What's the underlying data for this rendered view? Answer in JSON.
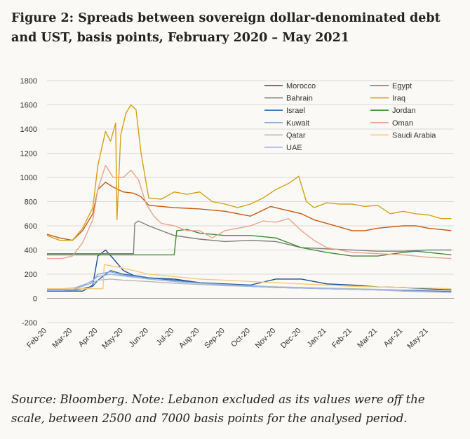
{
  "figure": {
    "title": "Figure 2: Spreads between sovereign dollar-denominated debt and UST, basis points, February 2020 – May 2021",
    "source": "Source: Bloomberg. Note: Lebanon excluded as its values were off the scale, between 2500 and 7000 basis points for the analysed period."
  },
  "chart_data": {
    "type": "line",
    "title": "",
    "xlabel": "",
    "ylabel": "",
    "ylim": [
      -200,
      1800
    ],
    "yticks": [
      -200,
      0,
      200,
      400,
      600,
      800,
      1000,
      1200,
      1400,
      1600,
      1800
    ],
    "x_ticks": [
      "Feb-20",
      "Mar-20",
      "Apr-20",
      "May-20",
      "Jun-20",
      "Jul-20",
      "Aug-20",
      "Sep-20",
      "Oct-20",
      "Nov-20",
      "Dec-20",
      "Jan-21",
      "Feb-21",
      "Mar-21",
      "Apr-21",
      "May-21"
    ],
    "x_range": [
      0,
      16
    ],
    "grid": true,
    "legend_position": "top-right",
    "series": [
      {
        "name": "Morocco",
        "color": "#1f4e91",
        "x": [
          0,
          0.6,
          1,
          1.4,
          1.8,
          2.0,
          2.3,
          2.6,
          3,
          3.4,
          4,
          5,
          6,
          7,
          8,
          9,
          10,
          11,
          12,
          13,
          14,
          15,
          15.9
        ],
        "y": [
          60,
          60,
          60,
          60,
          110,
          350,
          400,
          330,
          230,
          190,
          170,
          160,
          130,
          120,
          110,
          160,
          160,
          120,
          110,
          95,
          90,
          80,
          70
        ]
      },
      {
        "name": "Egypt",
        "color": "#c55a11",
        "x": [
          0,
          0.5,
          1,
          1.4,
          1.8,
          2.0,
          2.3,
          2.6,
          3,
          3.4,
          3.7,
          4,
          4.5,
          5,
          6,
          7,
          8,
          8.4,
          8.8,
          9.2,
          9.6,
          10,
          10.5,
          11,
          11.5,
          12,
          12.5,
          13,
          13.5,
          14,
          14.5,
          15,
          15.9
        ],
        "y": [
          530,
          500,
          480,
          560,
          700,
          900,
          960,
          920,
          880,
          870,
          840,
          770,
          760,
          750,
          740,
          720,
          680,
          720,
          760,
          740,
          720,
          700,
          650,
          620,
          590,
          560,
          560,
          580,
          590,
          600,
          600,
          580,
          560
        ]
      },
      {
        "name": "Bahrain",
        "color": "#7f7f7f",
        "x": [
          0,
          0.6,
          1,
          1.4,
          1.8,
          2.0,
          2.5,
          3,
          3.3,
          3.4,
          3.45,
          3.6,
          4,
          5,
          6,
          7,
          8,
          9,
          10,
          11,
          12,
          13,
          14,
          15,
          15.9
        ],
        "y": [
          370,
          370,
          370,
          370,
          370,
          370,
          370,
          370,
          370,
          370,
          620,
          640,
          600,
          520,
          490,
          470,
          480,
          470,
          420,
          410,
          400,
          390,
          390,
          400,
          400
        ]
      },
      {
        "name": "Iraq",
        "color": "#d4a017",
        "x": [
          0,
          0.5,
          1,
          1.4,
          1.8,
          2.0,
          2.3,
          2.5,
          2.7,
          2.75,
          2.9,
          3.1,
          3.3,
          3.5,
          3.7,
          4,
          4.5,
          5,
          5.5,
          6,
          6.5,
          7,
          7.5,
          8,
          8.5,
          9,
          9.5,
          9.9,
          10.2,
          10.5,
          11,
          11.5,
          12,
          12.5,
          13,
          13.5,
          14,
          14.5,
          15,
          15.5,
          15.9
        ],
        "y": [
          520,
          480,
          480,
          580,
          750,
          1100,
          1380,
          1300,
          1450,
          650,
          1350,
          1530,
          1600,
          1560,
          1200,
          830,
          820,
          880,
          860,
          880,
          800,
          780,
          750,
          780,
          830,
          900,
          950,
          1010,
          800,
          750,
          790,
          780,
          780,
          760,
          770,
          700,
          720,
          700,
          690,
          660,
          660
        ]
      },
      {
        "name": "Israel",
        "color": "#2e6fb5",
        "x": [
          0,
          0.6,
          1,
          1.4,
          1.8,
          2.0,
          2.5,
          3,
          4,
          5,
          6,
          7,
          8,
          9,
          10,
          11,
          12,
          13,
          14,
          15,
          15.9
        ],
        "y": [
          70,
          70,
          70,
          80,
          100,
          150,
          230,
          200,
          170,
          150,
          130,
          110,
          100,
          90,
          85,
          80,
          75,
          70,
          65,
          60,
          55
        ]
      },
      {
        "name": "Jordan",
        "color": "#3e8d31",
        "x": [
          0,
          0.6,
          1,
          1.4,
          1.8,
          2.0,
          2.5,
          3,
          3.5,
          4,
          4.5,
          4.9,
          5.0,
          5.1,
          5.5,
          6,
          7,
          8,
          9,
          10,
          11,
          12,
          13,
          14,
          14.5,
          15,
          15.9
        ],
        "y": [
          360,
          360,
          360,
          360,
          360,
          360,
          360,
          360,
          360,
          360,
          360,
          360,
          360,
          560,
          570,
          540,
          520,
          520,
          500,
          420,
          380,
          350,
          350,
          380,
          390,
          380,
          360
        ]
      },
      {
        "name": "Kuwait",
        "color": "#8aaad8",
        "x": [
          0,
          0.6,
          1,
          1.4,
          1.8,
          2.0,
          2.5,
          3,
          4,
          5,
          6,
          7,
          8,
          9,
          10,
          11,
          12,
          13,
          14,
          15,
          15.9
        ],
        "y": [
          75,
          75,
          80,
          110,
          140,
          200,
          220,
          190,
          160,
          140,
          125,
          115,
          105,
          95,
          90,
          80,
          75,
          70,
          60,
          55,
          50
        ]
      },
      {
        "name": "Oman",
        "color": "#e8a58c",
        "x": [
          0,
          0.6,
          1,
          1.4,
          1.8,
          2.0,
          2.3,
          2.6,
          3,
          3.3,
          3.6,
          3.9,
          4.2,
          4.5,
          5,
          5.5,
          6,
          6.5,
          7,
          8,
          8.5,
          9,
          9.5,
          10,
          10.5,
          11,
          12,
          13,
          14,
          14.5,
          15,
          15.9
        ],
        "y": [
          330,
          330,
          350,
          460,
          650,
          900,
          1100,
          1000,
          1000,
          1060,
          980,
          780,
          680,
          620,
          600,
          560,
          560,
          500,
          560,
          600,
          640,
          630,
          660,
          560,
          480,
          420,
          380,
          370,
          360,
          350,
          340,
          330
        ]
      },
      {
        "name": "Qatar",
        "color": "#b7b7b7",
        "x": [
          0,
          0.6,
          1,
          1.4,
          1.8,
          2.0,
          2.5,
          3,
          4,
          5,
          6,
          7,
          8,
          9,
          10,
          11,
          12,
          13,
          14,
          15,
          15.9
        ],
        "y": [
          80,
          80,
          85,
          100,
          130,
          150,
          160,
          150,
          140,
          125,
          115,
          105,
          100,
          95,
          90,
          85,
          80,
          75,
          70,
          70,
          65
        ]
      },
      {
        "name": "Saudi Arabia",
        "color": "#f5c97a",
        "x": [
          0,
          0.6,
          1,
          1.4,
          1.8,
          2.0,
          2.2,
          2.25,
          2.5,
          3,
          4,
          5,
          6,
          7,
          8,
          9,
          10,
          11,
          12,
          13,
          14,
          15,
          15.9
        ],
        "y": [
          80,
          80,
          80,
          80,
          80,
          80,
          80,
          280,
          270,
          250,
          200,
          180,
          160,
          150,
          140,
          130,
          120,
          110,
          100,
          95,
          90,
          85,
          80
        ]
      },
      {
        "name": "UAE",
        "color": "#9fb4e8",
        "x": [
          0,
          0.6,
          1,
          1.4,
          1.8,
          2.0,
          2.5,
          3,
          4,
          5,
          6,
          7,
          8,
          9,
          10,
          11,
          12,
          13,
          14,
          15,
          15.9
        ],
        "y": [
          65,
          65,
          70,
          100,
          150,
          180,
          200,
          185,
          160,
          140,
          125,
          110,
          100,
          90,
          85,
          80,
          75,
          70,
          60,
          55,
          50
        ]
      }
    ]
  }
}
